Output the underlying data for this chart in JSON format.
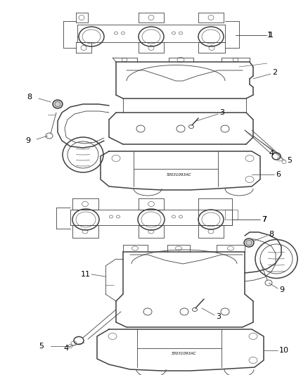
{
  "bg_color": "#ffffff",
  "line_color": "#404040",
  "label_color": "#000000",
  "fig_width": 4.38,
  "fig_height": 5.33,
  "dpi": 100,
  "lw_part": 1.1,
  "lw_detail": 0.6,
  "lw_thin": 0.4,
  "label_fontsize": 7.5
}
